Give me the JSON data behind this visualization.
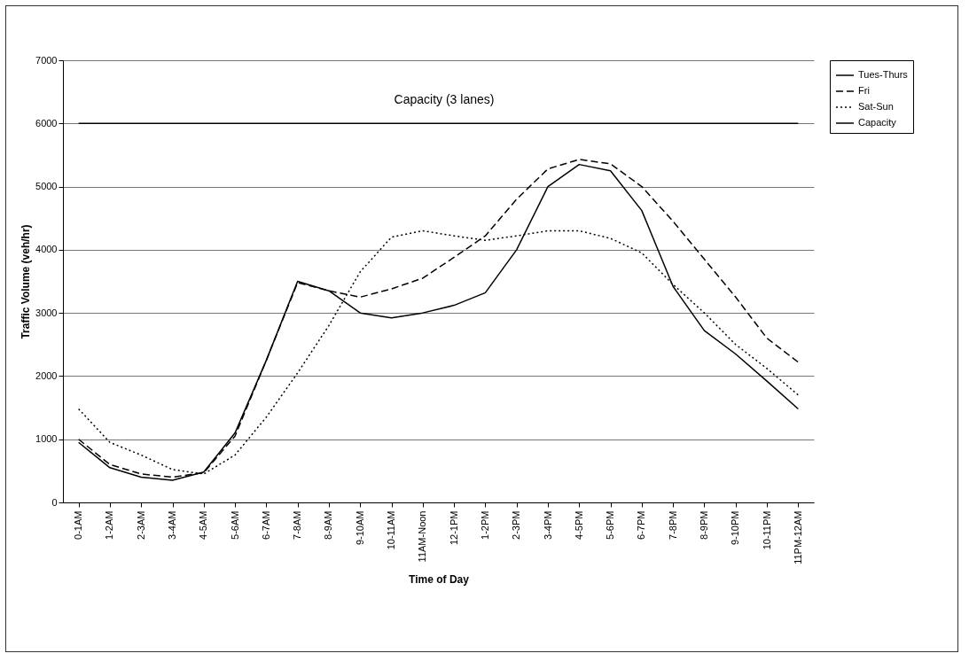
{
  "chart_data": {
    "type": "line",
    "xlabel": "Time of Day",
    "ylabel": "Traffic Volume (veh/hr)",
    "categories": [
      "0-1AM",
      "1-2AM",
      "2-3AM",
      "3-4AM",
      "4-5AM",
      "5-6AM",
      "6-7AM",
      "7-8AM",
      "8-9AM",
      "9-10AM",
      "10-11AM",
      "11AM-Noon",
      "12-1PM",
      "1-2PM",
      "2-3PM",
      "3-4PM",
      "4-5PM",
      "5-6PM",
      "6-7PM",
      "7-8PM",
      "8-9PM",
      "9-10PM",
      "10-11PM",
      "11PM-12AM"
    ],
    "series": [
      {
        "name": "Tues-Thurs",
        "color": "#000000",
        "line_style": "solid",
        "values": [
          950,
          550,
          400,
          350,
          480,
          1100,
          2250,
          3500,
          3350,
          3000,
          2920,
          3000,
          3120,
          3320,
          4000,
          5000,
          5350,
          5250,
          4620,
          3420,
          2720,
          2350,
          1920,
          1480
        ]
      },
      {
        "name": "Fri",
        "color": "#000000",
        "line_style": "dashed",
        "values": [
          1000,
          600,
          450,
          400,
          470,
          1050,
          2250,
          3480,
          3350,
          3250,
          3380,
          3550,
          3880,
          4220,
          4800,
          5280,
          5430,
          5360,
          5000,
          4450,
          3850,
          3250,
          2600,
          2220
        ]
      },
      {
        "name": "Sat-Sun",
        "color": "#000000",
        "line_style": "dotted",
        "values": [
          1480,
          950,
          750,
          520,
          450,
          750,
          1350,
          2050,
          2800,
          3650,
          4200,
          4300,
          4220,
          4150,
          4220,
          4300,
          4300,
          4180,
          3950,
          3450,
          3000,
          2500,
          2120,
          1700
        ]
      },
      {
        "name": "Capacity",
        "color": "#000000",
        "line_style": "solid",
        "values": [
          6000,
          6000,
          6000,
          6000,
          6000,
          6000,
          6000,
          6000,
          6000,
          6000,
          6000,
          6000,
          6000,
          6000,
          6000,
          6000,
          6000,
          6000,
          6000,
          6000,
          6000,
          6000,
          6000,
          6000
        ]
      }
    ],
    "ylim": [
      0,
      7000
    ],
    "yticks": [
      0,
      1000,
      2000,
      3000,
      4000,
      5000,
      6000,
      7000
    ],
    "grid": "y",
    "legend": "right",
    "marker": "none",
    "annotations": [
      "Capacity (3 lanes)"
    ]
  }
}
